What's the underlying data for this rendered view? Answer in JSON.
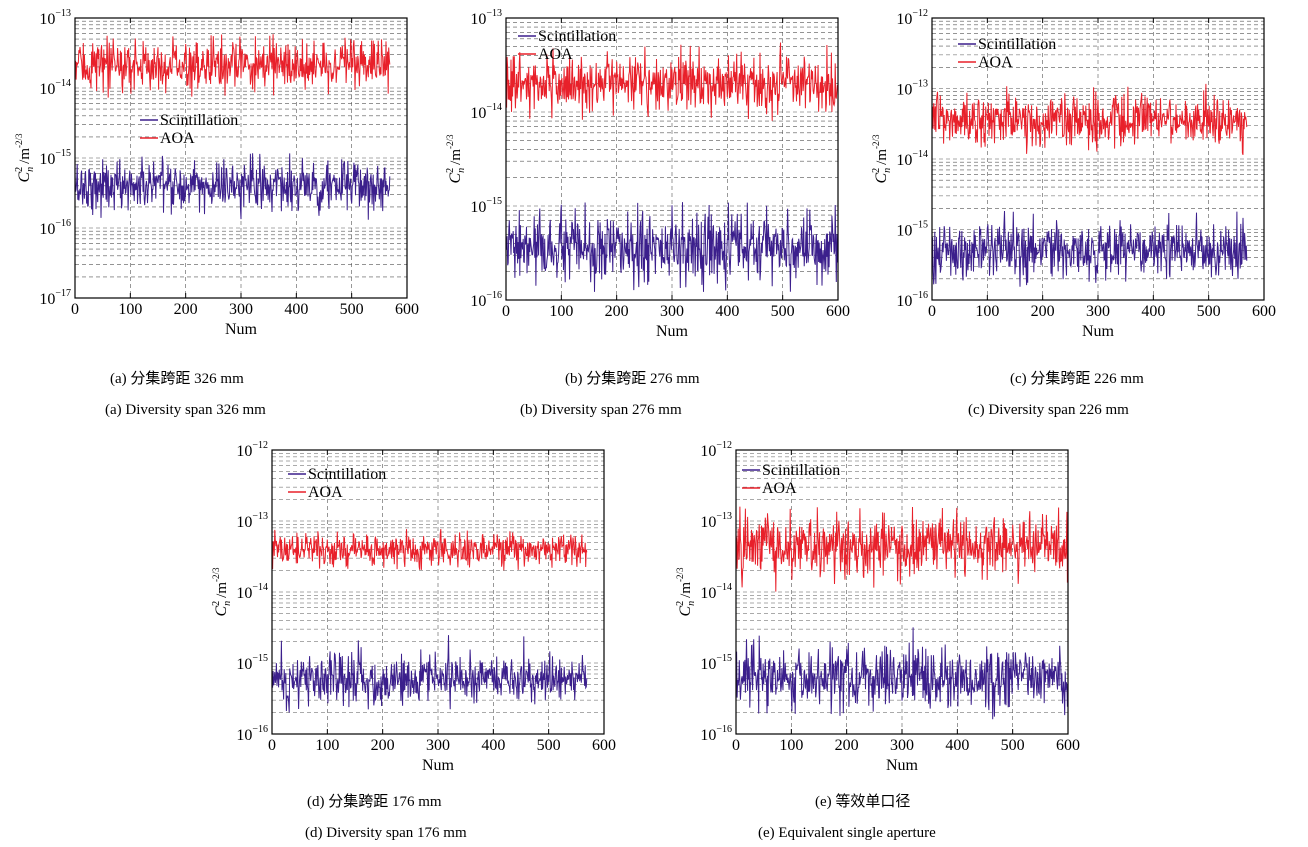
{
  "chart_data": [
    {
      "type": "line",
      "id": "a",
      "title": "",
      "xlabel": "Num",
      "ylabel_symbol": "C",
      "ylabel_sup": "2",
      "ylabel_sub": "n",
      "ylabel_unit": "/m",
      "ylabel_unit_exp": "-2/3",
      "x_ticks": [
        "0",
        "100",
        "200",
        "300",
        "400",
        "500",
        "600"
      ],
      "xlim": [
        0,
        600
      ],
      "ylim_exp": [
        -17,
        -13
      ],
      "y_scale": "log",
      "grid": true,
      "legend": [
        "Scintillation",
        "AOA"
      ],
      "legend_placement": "center-left",
      "series": [
        {
          "name": "Scintillation",
          "color": "#3b1f8c",
          "n_points": 570,
          "typical": 4e-16,
          "min": 9e-17,
          "max": 1.2e-15
        },
        {
          "name": "AOA",
          "color": "#e8202a",
          "n_points": 570,
          "typical": 2.1e-14,
          "min": 7e-15,
          "max": 6e-14
        }
      ],
      "caption_cn": "(a) 分集跨距 326 mm",
      "caption_en": "(a) Diversity span 326 mm"
    },
    {
      "type": "line",
      "id": "b",
      "title": "",
      "xlabel": "Num",
      "ylabel_symbol": "C",
      "ylabel_sup": "2",
      "ylabel_sub": "n",
      "ylabel_unit": "/m",
      "ylabel_unit_exp": "-2/3",
      "x_ticks": [
        "0",
        "100",
        "200",
        "300",
        "400",
        "500",
        "600"
      ],
      "xlim": [
        0,
        600
      ],
      "ylim_exp": [
        -16,
        -13
      ],
      "y_scale": "log",
      "grid": true,
      "legend": [
        "Scintillation",
        "AOA"
      ],
      "legend_placement": "top-left",
      "series": [
        {
          "name": "Scintillation",
          "color": "#3b1f8c",
          "n_points": 600,
          "typical": 3.5e-16,
          "min": 1.2e-16,
          "max": 1.1e-15
        },
        {
          "name": "AOA",
          "color": "#e8202a",
          "n_points": 600,
          "typical": 2e-14,
          "min": 8e-15,
          "max": 5.5e-14
        }
      ],
      "caption_cn": "(b) 分集跨距 276 mm",
      "caption_en": "(b) Diversity span 276 mm"
    },
    {
      "type": "line",
      "id": "c",
      "title": "",
      "xlabel": "Num",
      "ylabel_symbol": "C",
      "ylabel_sup": "2",
      "ylabel_sub": "n",
      "ylabel_unit": "/m",
      "ylabel_unit_exp": "-2/3",
      "x_ticks": [
        "0",
        "100",
        "200",
        "300",
        "400",
        "500",
        "600"
      ],
      "xlim": [
        0,
        600
      ],
      "ylim_exp": [
        -16,
        -12
      ],
      "y_scale": "log",
      "grid": true,
      "legend": [
        "Scintillation",
        "AOA"
      ],
      "legend_placement": "top-left",
      "series": [
        {
          "name": "Scintillation",
          "color": "#3b1f8c",
          "n_points": 570,
          "typical": 5e-16,
          "min": 1.5e-16,
          "max": 1.9e-15
        },
        {
          "name": "AOA",
          "color": "#e8202a",
          "n_points": 570,
          "typical": 3.5e-14,
          "min": 1.1e-14,
          "max": 1.2e-13
        }
      ],
      "caption_cn": "(c) 分集跨距 226 mm",
      "caption_en": "(c) Diversity span 226 mm"
    },
    {
      "type": "line",
      "id": "d",
      "title": "",
      "xlabel": "Num",
      "ylabel_symbol": "C",
      "ylabel_sup": "2",
      "ylabel_sub": "n",
      "ylabel_unit": "/m",
      "ylabel_unit_exp": "-2/3",
      "x_ticks": [
        "0",
        "100",
        "200",
        "300",
        "400",
        "500",
        "600"
      ],
      "xlim": [
        0,
        600
      ],
      "ylim_exp": [
        -16,
        -12
      ],
      "y_scale": "log",
      "grid": true,
      "legend": [
        "Scintillation",
        "AOA"
      ],
      "legend_placement": "top-left",
      "series": [
        {
          "name": "Scintillation",
          "color": "#3b1f8c",
          "n_points": 570,
          "typical": 6e-16,
          "min": 2e-16,
          "max": 2.5e-15
        },
        {
          "name": "AOA",
          "color": "#e8202a",
          "n_points": 570,
          "typical": 4e-14,
          "min": 2e-14,
          "max": 1.3e-13
        }
      ],
      "caption_cn": "(d) 分集跨距 176 mm",
      "caption_en": "(d) Diversity span 176 mm"
    },
    {
      "type": "line",
      "id": "e",
      "title": "",
      "xlabel": "Num",
      "ylabel_symbol": "C",
      "ylabel_sup": "2",
      "ylabel_sub": "n",
      "ylabel_unit": "/m",
      "ylabel_unit_exp": "-2/3",
      "x_ticks": [
        "0",
        "100",
        "200",
        "300",
        "400",
        "500",
        "600"
      ],
      "xlim": [
        0,
        600
      ],
      "ylim_exp": [
        -16,
        -12
      ],
      "y_scale": "log",
      "grid": true,
      "legend": [
        "Scintillation",
        "AOA"
      ],
      "legend_placement": "top-left",
      "series": [
        {
          "name": "Scintillation",
          "color": "#3b1f8c",
          "n_points": 600,
          "typical": 6e-16,
          "min": 1.6e-16,
          "max": 3.5e-15
        },
        {
          "name": "AOA",
          "color": "#e8202a",
          "n_points": 600,
          "typical": 4.5e-14,
          "min": 1e-14,
          "max": 1.6e-13
        }
      ],
      "caption_cn": "(e) 等效单口径",
      "caption_en": "(e) Equivalent single aperture"
    }
  ]
}
